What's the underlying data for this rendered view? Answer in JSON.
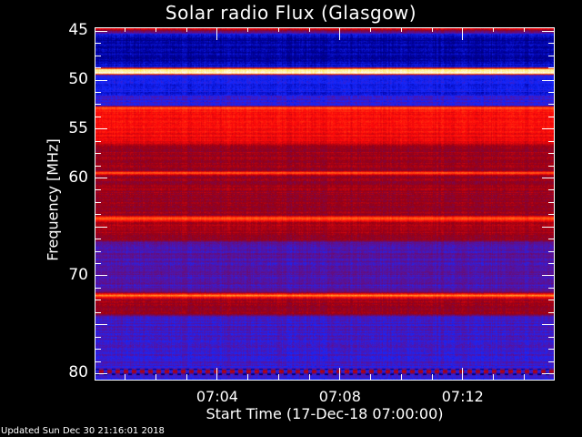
{
  "title": "Solar radio Flux (Glasgow)",
  "updated": "Updated Sun Dec 30 21:16:01 2018",
  "chart_data": {
    "type": "heatmap",
    "title": "Solar radio Flux (Glasgow)",
    "xlabel": "Start Time (17-Dec-18 07:00:00)",
    "ylabel": "Frequency [MHz]",
    "xlim": [
      "07:00",
      "07:15"
    ],
    "ylim": [
      44.6,
      80.7
    ],
    "y_inverted": true,
    "x_ticks": [
      "07:04",
      "07:08",
      "07:12"
    ],
    "y_ticks": [
      45,
      50,
      55,
      60,
      70,
      80
    ],
    "colormap": "black-blue-purple-red-orange-yellow-white",
    "frequency_profile": [
      [
        44.6,
        0.6
      ],
      [
        45.3,
        0.2
      ],
      [
        48.5,
        0.22
      ],
      [
        48.8,
        0.95
      ],
      [
        49.2,
        0.95
      ],
      [
        49.4,
        0.28
      ],
      [
        51.4,
        0.26
      ],
      [
        51.6,
        0.33
      ],
      [
        52.5,
        0.3
      ],
      [
        52.7,
        0.75
      ],
      [
        53.1,
        0.62
      ],
      [
        56.4,
        0.6
      ],
      [
        56.6,
        0.5
      ],
      [
        59.2,
        0.5
      ],
      [
        59.4,
        0.76
      ],
      [
        59.7,
        0.5
      ],
      [
        63.8,
        0.5
      ],
      [
        64.1,
        0.77
      ],
      [
        64.5,
        0.52
      ],
      [
        66.3,
        0.5
      ],
      [
        66.6,
        0.36
      ],
      [
        71.6,
        0.35
      ],
      [
        72.0,
        0.78
      ],
      [
        72.4,
        0.5
      ],
      [
        73.9,
        0.5
      ],
      [
        74.2,
        0.33
      ],
      [
        79.5,
        0.32
      ],
      [
        79.8,
        0.56
      ],
      [
        80.2,
        0.3
      ],
      [
        80.7,
        0.3
      ]
    ]
  }
}
